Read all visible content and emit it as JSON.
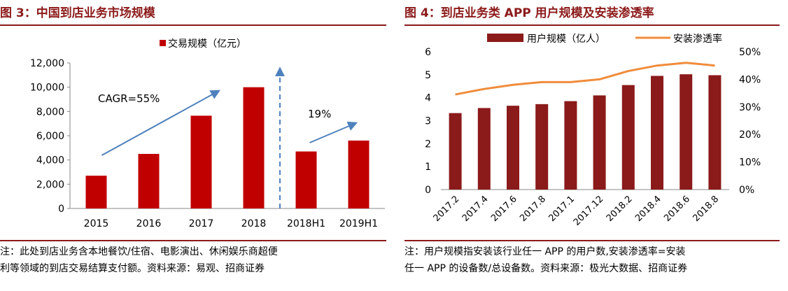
{
  "left": {
    "fig_title": "图 3：中国到店业务市场规模",
    "note_lines": [
      "注：此处到店业务含本地餐饮/住宿、电影演出、休闲娱乐商超便",
      "利等领域的到店交易结算支付额。资料来源：易观、招商证券"
    ]
  },
  "right": {
    "fig_title": "图 4：到店业务类 APP 用户规模及安装渗透率",
    "note_lines": [
      "注：用户规模指安装该行业任一 APP 的用户数,安装渗透率=安装",
      "任一 APP 的设备数/总设备数。资料来源：极光大数据、招商证券"
    ]
  },
  "footer_text": "",
  "chart_data": [
    {
      "type": "bar",
      "title": "",
      "categories": [
        "2015",
        "2016",
        "2017",
        "2018",
        "2018H1",
        "2019H1"
      ],
      "series": [
        {
          "name": "交易规模（亿元）",
          "values": [
            2700,
            4500,
            7650,
            10000,
            4700,
            5600
          ]
        }
      ],
      "ylim": [
        0,
        12000
      ],
      "yticks": [
        0,
        2000,
        4000,
        6000,
        8000,
        10000,
        12000
      ],
      "ytick_labels": [
        "0",
        "2,000",
        "4,000",
        "6,000",
        "8,000",
        "10,000",
        "12,000"
      ],
      "legend": "top",
      "annotations": [
        {
          "text": "CAGR=55%",
          "from": 0,
          "to": 3
        },
        {
          "text": "19%",
          "from": 4,
          "to": 5
        }
      ],
      "colors": {
        "bar": "#c00000",
        "arrow": "#4f81bd"
      },
      "grid": false
    },
    {
      "type": "bar+line",
      "title": "",
      "categories": [
        "2017.2",
        "2017.4",
        "2017.6",
        "2017.8",
        "2017.1",
        "2017.12",
        "2018.2",
        "2018.4",
        "2018.6",
        "2018.8"
      ],
      "series": [
        {
          "name": "用户规模（亿人）",
          "type": "bar",
          "axis": "left",
          "values": [
            3.33,
            3.55,
            3.65,
            3.72,
            3.85,
            4.1,
            4.55,
            4.95,
            5.02,
            4.98
          ]
        },
        {
          "name": "安装渗透率",
          "type": "line",
          "axis": "right",
          "values": [
            34.5,
            36.5,
            38.0,
            39.0,
            39.0,
            40.0,
            43.0,
            45.0,
            46.0,
            45.0
          ]
        }
      ],
      "ylim_left": [
        0,
        6
      ],
      "ylim_right": [
        0,
        50
      ],
      "yticks_left": [
        "0",
        "1",
        "2",
        "3",
        "4",
        "5",
        "6"
      ],
      "yticks_right": [
        "0%",
        "10%",
        "20%",
        "30%",
        "40%",
        "50%"
      ],
      "legend": "top",
      "colors": {
        "bar": "#8b1a1a",
        "line": "#f08c3c"
      },
      "grid": false
    }
  ]
}
